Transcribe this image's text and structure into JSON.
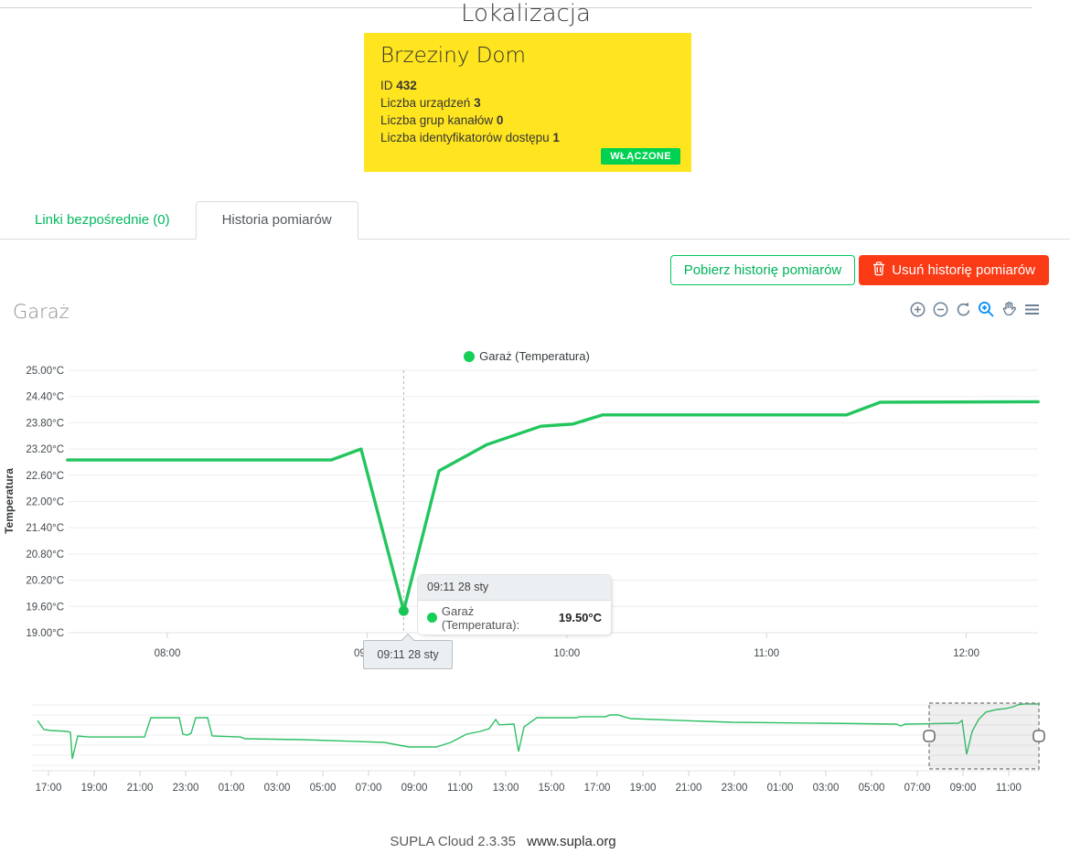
{
  "page": {
    "title": "Lokalizacja",
    "footer": {
      "version": "SUPLA Cloud 2.3.35",
      "link": "www.supla.org"
    }
  },
  "location_card": {
    "name": "Brzeziny Dom",
    "id_label": "ID",
    "id_value": "432",
    "fields": [
      {
        "label": "Liczba urządzeń",
        "value": "3"
      },
      {
        "label": "Liczba grup kanałów",
        "value": "0"
      },
      {
        "label": "Liczba identyfikatorów dostępu",
        "value": "1"
      }
    ],
    "status_badge": "WŁĄCZONE",
    "colors": {
      "background": "#ffe520",
      "badge_green": "#00d151"
    }
  },
  "tabs": [
    {
      "label": "Linki bezpośrednie (0)",
      "active": false
    },
    {
      "label": "Historia pomiarów",
      "active": true
    }
  ],
  "actions": {
    "download": "Pobierz historię pomiarów",
    "delete": "Usuń historię pomiarów"
  },
  "chart_section": {
    "heading": "Garaż",
    "toolbar_icons": [
      "zoom-in-icon",
      "zoom-out-icon",
      "reset-zoom-icon",
      "selection-zoom-icon",
      "pan-icon",
      "menu-icon"
    ],
    "toolbar_active_color": "#008ffb",
    "toolbar_color": "#6e8192"
  },
  "chart_data": [
    {
      "type": "line",
      "role": "main",
      "title": "Garaż (Temperatura)",
      "ylabel": "Temperatura",
      "ylim": [
        19.0,
        25.0
      ],
      "ytick_values": [
        25.0,
        24.4,
        23.8,
        23.2,
        22.6,
        22.0,
        21.4,
        20.8,
        20.2,
        19.6,
        19.0
      ],
      "ytick_labels": [
        "25.00°C",
        "24.40°C",
        "23.80°C",
        "23.20°C",
        "22.60°C",
        "22.00°C",
        "21.40°C",
        "20.80°C",
        "20.20°C",
        "19.60°C",
        "19.00°C"
      ],
      "xticks": [
        {
          "v": 8,
          "label": "08:00"
        },
        {
          "v": 9,
          "label": "09:00"
        },
        {
          "v": 10,
          "label": "10:00"
        },
        {
          "v": 11,
          "label": "11:00"
        },
        {
          "v": 12,
          "label": "12:00"
        }
      ],
      "series": [
        {
          "name": "Garaż (Temperatura)",
          "color": "#22c55e",
          "points": [
            [
              7.5,
              22.95
            ],
            [
              8.82,
              22.95
            ],
            [
              8.97,
              23.2
            ],
            [
              9.183,
              19.5
            ],
            [
              9.36,
              22.7
            ],
            [
              9.6,
              23.3
            ],
            [
              9.87,
              23.72
            ],
            [
              10.03,
              23.77
            ],
            [
              10.18,
              23.98
            ],
            [
              11.4,
              23.98
            ],
            [
              11.57,
              24.27
            ],
            [
              12.36,
              24.28
            ]
          ]
        }
      ],
      "highlight": {
        "x": 9.183,
        "y": 19.5,
        "xaxis_label": "09:11 28 sty"
      },
      "tooltip": {
        "header": "09:11 28 sty",
        "series_label": "Garaż (Temperatura):",
        "value": "19.50°C"
      },
      "grid": true,
      "legend_position": "top"
    },
    {
      "type": "line",
      "role": "brush-navigator",
      "xticks": [
        "17:00",
        "19:00",
        "21:00",
        "23:00",
        "01:00",
        "03:00",
        "05:00",
        "07:00",
        "09:00",
        "11:00",
        "13:00",
        "15:00",
        "17:00",
        "19:00",
        "21:00",
        "23:00",
        "01:00",
        "03:00",
        "05:00",
        "07:00",
        "09:00",
        "11:00"
      ],
      "series": [
        {
          "name": "Garaż (Temperatura)",
          "color": "#2dc065",
          "points": [
            [
              -0.48,
              22.73
            ],
            [
              -0.2,
              21.86
            ],
            [
              0.12,
              21.77
            ],
            [
              0.84,
              21.68
            ],
            [
              0.96,
              21.59
            ],
            [
              1.04,
              19.05
            ],
            [
              1.28,
              21.24
            ],
            [
              1.76,
              21.15
            ],
            [
              4.2,
              21.15
            ],
            [
              4.48,
              23.0
            ],
            [
              5.72,
              23.0
            ],
            [
              5.88,
              21.42
            ],
            [
              6.08,
              21.33
            ],
            [
              6.24,
              21.51
            ],
            [
              6.44,
              23.0
            ],
            [
              6.96,
              23.0
            ],
            [
              7.16,
              21.24
            ],
            [
              8.4,
              21.15
            ],
            [
              8.6,
              20.98
            ],
            [
              11.08,
              20.89
            ],
            [
              14.68,
              20.63
            ],
            [
              15.76,
              20.19
            ],
            [
              16.96,
              20.19
            ],
            [
              17.6,
              20.63
            ],
            [
              18.28,
              21.42
            ],
            [
              18.88,
              21.68
            ],
            [
              19.28,
              21.95
            ],
            [
              19.56,
              22.82
            ],
            [
              19.72,
              22.3
            ],
            [
              20.36,
              22.39
            ],
            [
              20.56,
              19.75
            ],
            [
              20.8,
              22.12
            ],
            [
              21.36,
              23.0
            ],
            [
              23.08,
              23.0
            ],
            [
              23.24,
              23.09
            ],
            [
              24.36,
              23.09
            ],
            [
              24.56,
              23.26
            ],
            [
              24.92,
              23.26
            ],
            [
              25.16,
              23.09
            ],
            [
              25.48,
              22.91
            ],
            [
              29.88,
              22.56
            ],
            [
              33.88,
              22.47
            ],
            [
              37.08,
              22.38
            ],
            [
              37.28,
              22.21
            ],
            [
              37.48,
              22.38
            ],
            [
              39.8,
              22.47
            ],
            [
              39.96,
              22.73
            ],
            [
              40.16,
              19.49
            ],
            [
              40.4,
              21.68
            ],
            [
              40.68,
              22.82
            ],
            [
              41.0,
              23.53
            ],
            [
              41.48,
              23.79
            ],
            [
              41.88,
              23.88
            ],
            [
              42.2,
              24.05
            ],
            [
              42.4,
              24.23
            ],
            [
              42.68,
              24.32
            ],
            [
              43.36,
              24.32
            ]
          ]
        }
      ],
      "selection": {
        "start": 38.52,
        "end": 43.32
      }
    }
  ]
}
